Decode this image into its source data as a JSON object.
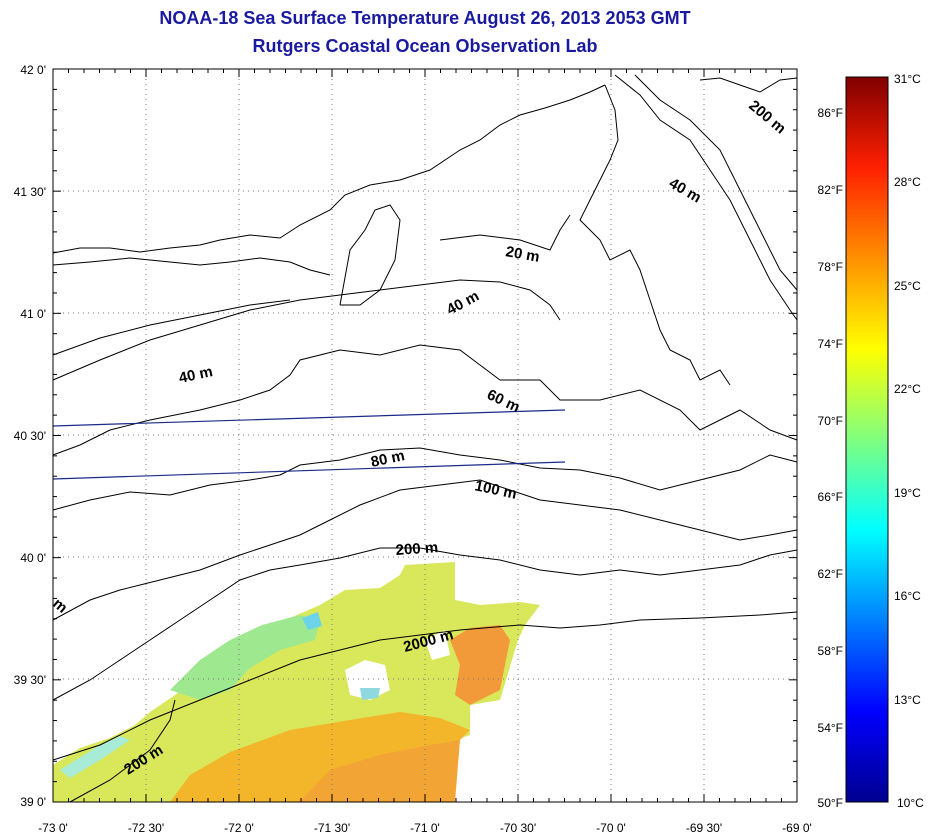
{
  "header": {
    "title": "NOAA-18 Sea Surface Temperature August 26, 2013 2053 GMT",
    "subtitle": "Rutgers Coastal Ocean Observation Lab"
  },
  "map": {
    "lat_labels": [
      "42 0'",
      "41 30'",
      "41 0'",
      "40 30'",
      "40 0'",
      "39 30'",
      "39 0'"
    ],
    "lon_labels": [
      "-73 0'",
      "-72 30'",
      "-72 0'",
      "-71 30'",
      "-71 0'",
      "-70 30'",
      "-70 0'",
      "-69 30'",
      "-69 0'"
    ],
    "contour_labels": [
      "200 m",
      "40 m",
      "20 m",
      "40 m",
      "40 m",
      "60 m",
      "80 m",
      "100 m",
      "200 m",
      "2000 m",
      "200 m",
      "m"
    ]
  },
  "colorbar": {
    "celsius": [
      "31°C",
      "28°C",
      "25°C",
      "22°C",
      "19°C",
      "16°C",
      "13°C",
      "10°C"
    ],
    "fahrenheit": [
      "86°F",
      "82°F",
      "78°F",
      "74°F",
      "70°F",
      "66°F",
      "62°F",
      "58°F",
      "54°F",
      "50°F"
    ]
  }
}
